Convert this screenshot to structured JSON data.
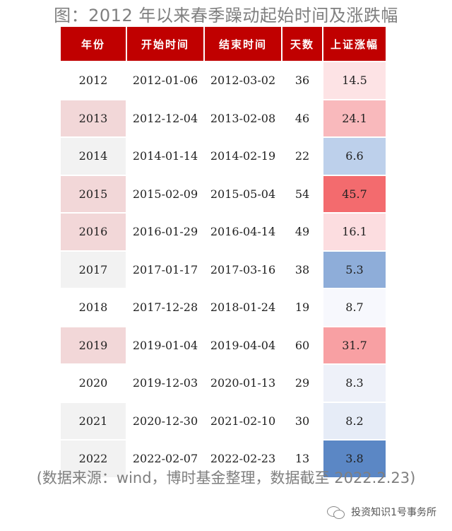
{
  "title": "图：2012 年以来春季躁动起始时间及涨跌幅",
  "table": {
    "headers": [
      "年份",
      "开始时间",
      "结束时间",
      "天数",
      "上证涨幅"
    ],
    "rows": [
      {
        "year": "2012",
        "start": "2012-01-06",
        "end": "2012-03-02",
        "days": "36",
        "gain": "14.5",
        "year_bg": "#ffffff",
        "gain_bg": "#fde3e5"
      },
      {
        "year": "2013",
        "start": "2012-12-04",
        "end": "2013-02-08",
        "days": "46",
        "gain": "24.1",
        "year_bg": "#f2d7d8",
        "gain_bg": "#f9b9bc"
      },
      {
        "year": "2014",
        "start": "2014-01-14",
        "end": "2014-02-19",
        "days": "22",
        "gain": "6.6",
        "year_bg": "#f2f2f2",
        "gain_bg": "#bdd0eb"
      },
      {
        "year": "2015",
        "start": "2015-02-09",
        "end": "2015-05-04",
        "days": "54",
        "gain": "45.7",
        "year_bg": "#f2d7d8",
        "gain_bg": "#f36b6e"
      },
      {
        "year": "2016",
        "start": "2016-01-29",
        "end": "2016-04-14",
        "days": "49",
        "gain": "16.1",
        "year_bg": "#f2d7d8",
        "gain_bg": "#fcdde0"
      },
      {
        "year": "2017",
        "start": "2017-01-17",
        "end": "2017-03-16",
        "days": "38",
        "gain": "5.3",
        "year_bg": "#f2f2f2",
        "gain_bg": "#8eadd9"
      },
      {
        "year": "2018",
        "start": "2017-12-28",
        "end": "2018-01-24",
        "days": "19",
        "gain": "8.7",
        "year_bg": "#ffffff",
        "gain_bg": "#f7f8fd"
      },
      {
        "year": "2019",
        "start": "2019-01-04",
        "end": "2019-04-04",
        "days": "60",
        "gain": "31.7",
        "year_bg": "#f2d7d8",
        "gain_bg": "#f8a0a3"
      },
      {
        "year": "2020",
        "start": "2019-12-03",
        "end": "2020-01-13",
        "days": "29",
        "gain": "8.3",
        "year_bg": "#ffffff",
        "gain_bg": "#eef1f9"
      },
      {
        "year": "2021",
        "start": "2020-12-30",
        "end": "2021-02-10",
        "days": "30",
        "gain": "8.2",
        "year_bg": "#f2f2f2",
        "gain_bg": "#e6ecf7"
      },
      {
        "year": "2022",
        "start": "2022-02-07",
        "end": "2022-02-23",
        "days": "13",
        "gain": "3.8",
        "year_bg": "#f2f2f2",
        "gain_bg": "#5b87c5"
      }
    ]
  },
  "source": "(数据来源：wind，博时基金整理，数据截至 2022.2.23)",
  "watermark": {
    "icon": "wechat-icon",
    "text": "投资知识1号事务所"
  }
}
